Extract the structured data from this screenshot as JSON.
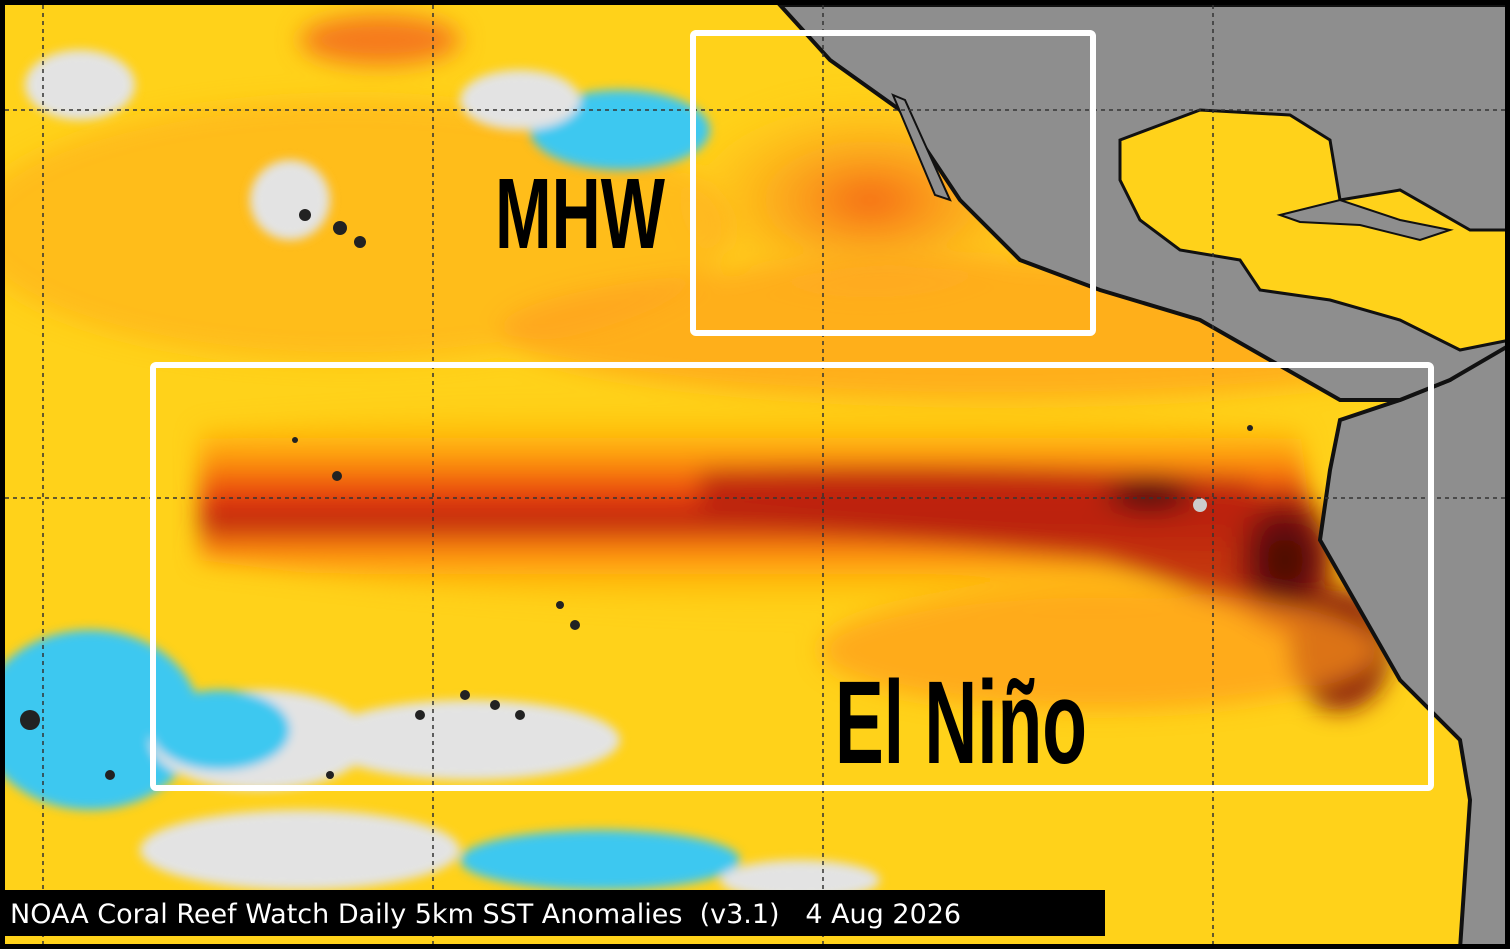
{
  "labels": {
    "mhw": "MHW",
    "el_nino": "El Niño"
  },
  "caption": "NOAA Coral Reef Watch Daily 5km SST Anomalies  (v3.1)   4 Aug 2026"
}
